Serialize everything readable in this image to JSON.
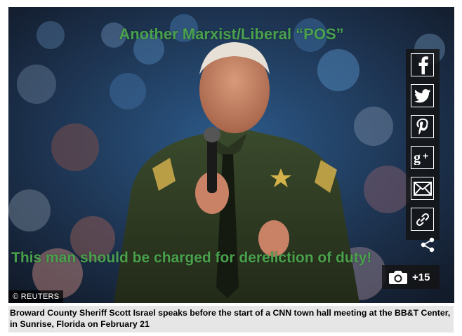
{
  "photo": {
    "overlay_top": "Another Marxist/Liberal “POS”",
    "overlay_bottom": "This man should be charged for dereliction of duty!",
    "credit": "© REUTERS"
  },
  "share": {
    "buttons": [
      {
        "name": "facebook",
        "icon": "facebook-icon"
      },
      {
        "name": "twitter",
        "icon": "twitter-icon"
      },
      {
        "name": "pinterest",
        "icon": "pinterest-icon"
      },
      {
        "name": "google-plus",
        "icon": "google-plus-icon"
      },
      {
        "name": "email",
        "icon": "mail-icon"
      },
      {
        "name": "link",
        "icon": "link-icon"
      }
    ]
  },
  "gallery": {
    "count": "+15"
  },
  "caption": {
    "text": "Broward County Sheriff Scott Israel speaks before the start of a CNN town hall meeting at the BB&T Center, in Sunrise, Florida on February 21"
  },
  "colors": {
    "overlay_text": "#4aa14d",
    "uniform": "#2f3a23",
    "caption_bg": "#e6e6e6"
  }
}
